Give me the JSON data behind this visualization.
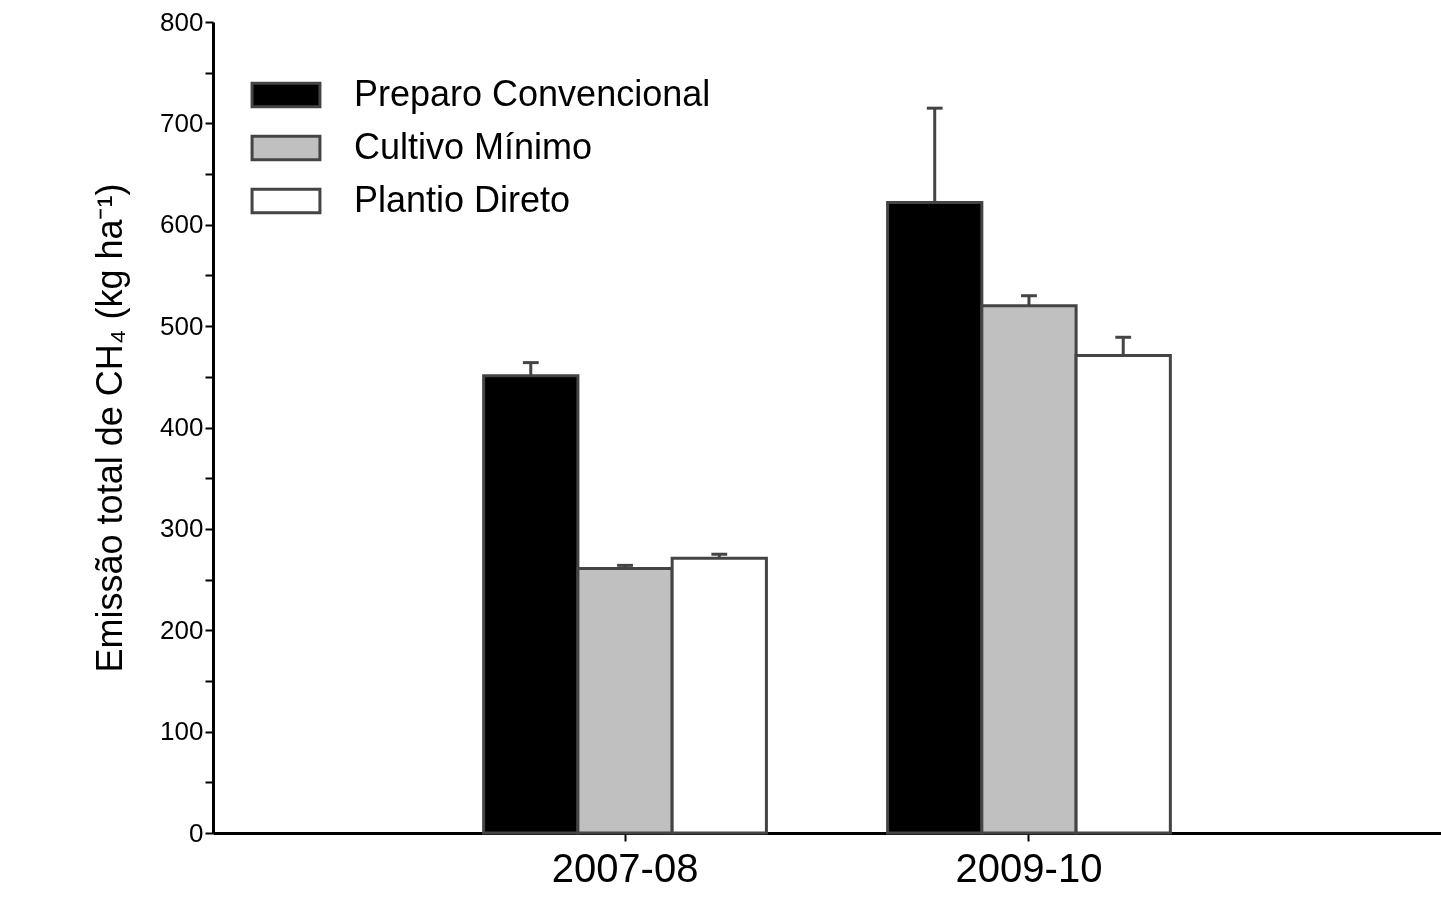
{
  "chart_data": {
    "type": "bar",
    "ylabel": "Emissão total de CH₄ (kg ha⁻¹)",
    "categories": [
      "2007-08",
      "2009-10"
    ],
    "series": [
      {
        "name": "Preparo Convencional",
        "color": "#000000",
        "values": [
          451,
          622
        ],
        "errors": [
          [
            451,
            464
          ],
          [
            622,
            715
          ]
        ]
      },
      {
        "name": "Cultivo Mínimo",
        "color": "#c0c0c0",
        "values": [
          261,
          520
        ],
        "errors": [
          [
            261,
            264
          ],
          [
            520,
            530
          ]
        ]
      },
      {
        "name": "Plantio Direto",
        "color": "#ffffff",
        "values": [
          271,
          471
        ],
        "errors": [
          [
            271,
            275
          ],
          [
            471,
            489
          ]
        ]
      }
    ],
    "ylim": [
      0,
      800
    ],
    "yticks": [
      0,
      {
        "value": 50,
        "label": null
      },
      100,
      {
        "value": 150,
        "label": null
      },
      200,
      {
        "value": 250,
        "label": null
      },
      300,
      {
        "value": 350,
        "label": null
      },
      400,
      {
        "value": 450,
        "label": null
      },
      500,
      {
        "value": 550,
        "label": null
      },
      600,
      {
        "value": 650,
        "label": null
      },
      700,
      {
        "value": 750,
        "label": null
      },
      800
    ],
    "grid": false,
    "legend": "top left"
  }
}
